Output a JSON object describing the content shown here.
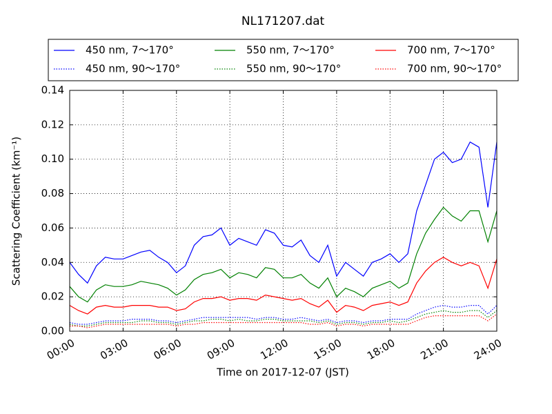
{
  "chart_data": {
    "type": "line",
    "title": "NL171207.dat",
    "xlabel": "Time on 2017-12-07 (JST)",
    "ylabel": "Scattering Coefficient (km⁻¹)",
    "grid": true,
    "legend": "top",
    "x": [
      0,
      0.5,
      1,
      1.5,
      2,
      2.5,
      3,
      3.5,
      4,
      4.5,
      5,
      5.5,
      6,
      6.5,
      7,
      7.5,
      8,
      8.5,
      9,
      9.5,
      10,
      10.5,
      11,
      11.5,
      12,
      12.5,
      13,
      13.5,
      14,
      14.5,
      15,
      15.5,
      16,
      16.5,
      17,
      17.5,
      18,
      18.5,
      19,
      19.5,
      20,
      20.5,
      21,
      21.5,
      22,
      22.5,
      23,
      23.5,
      24
    ],
    "xlim": [
      0,
      24
    ],
    "xticks": [
      {
        "value": 0,
        "label": "00:00"
      },
      {
        "value": 3,
        "label": "03:00"
      },
      {
        "value": 6,
        "label": "06:00"
      },
      {
        "value": 9,
        "label": "09:00"
      },
      {
        "value": 12,
        "label": "12:00"
      },
      {
        "value": 15,
        "label": "15:00"
      },
      {
        "value": 18,
        "label": "18:00"
      },
      {
        "value": 21,
        "label": "21:00"
      },
      {
        "value": 24,
        "label": "24:00"
      }
    ],
    "ylim": [
      0,
      0.14
    ],
    "yticks": [
      {
        "value": 0,
        "label": "0.00"
      },
      {
        "value": 0.02,
        "label": "0.02"
      },
      {
        "value": 0.04,
        "label": "0.04"
      },
      {
        "value": 0.06,
        "label": "0.06"
      },
      {
        "value": 0.08,
        "label": "0.08"
      },
      {
        "value": 0.1,
        "label": "0.10"
      },
      {
        "value": 0.12,
        "label": "0.12"
      },
      {
        "value": 0.14,
        "label": "0.14"
      }
    ],
    "series": [
      {
        "name": "450 nm, 7～170°",
        "color": "#0000ff",
        "linestyle": "solid",
        "values": [
          0.04,
          0.033,
          0.028,
          0.038,
          0.043,
          0.042,
          0.042,
          0.044,
          0.046,
          0.047,
          0.043,
          0.04,
          0.034,
          0.038,
          0.05,
          0.055,
          0.056,
          0.06,
          0.05,
          0.054,
          0.052,
          0.05,
          0.059,
          0.057,
          0.05,
          0.049,
          0.053,
          0.044,
          0.04,
          0.05,
          0.032,
          0.04,
          0.036,
          0.032,
          0.04,
          0.042,
          0.045,
          0.04,
          0.045,
          0.07,
          0.085,
          0.1,
          0.104,
          0.098,
          0.1,
          0.11,
          0.107,
          0.072,
          0.11
        ]
      },
      {
        "name": "450 nm, 90～170°",
        "color": "#0000ff",
        "linestyle": "dotted",
        "values": [
          0.005,
          0.004,
          0.004,
          0.005,
          0.006,
          0.006,
          0.006,
          0.007,
          0.007,
          0.007,
          0.006,
          0.006,
          0.005,
          0.006,
          0.007,
          0.008,
          0.008,
          0.008,
          0.008,
          0.008,
          0.008,
          0.007,
          0.008,
          0.008,
          0.007,
          0.007,
          0.008,
          0.007,
          0.006,
          0.007,
          0.005,
          0.006,
          0.006,
          0.005,
          0.006,
          0.006,
          0.007,
          0.007,
          0.007,
          0.01,
          0.012,
          0.014,
          0.015,
          0.014,
          0.014,
          0.015,
          0.015,
          0.01,
          0.015
        ]
      },
      {
        "name": "550 nm, 7～170°",
        "color": "#008000",
        "linestyle": "solid",
        "values": [
          0.026,
          0.02,
          0.017,
          0.024,
          0.027,
          0.026,
          0.026,
          0.027,
          0.029,
          0.028,
          0.027,
          0.025,
          0.021,
          0.024,
          0.03,
          0.033,
          0.034,
          0.036,
          0.031,
          0.034,
          0.033,
          0.031,
          0.037,
          0.036,
          0.031,
          0.031,
          0.033,
          0.028,
          0.025,
          0.031,
          0.02,
          0.025,
          0.023,
          0.02,
          0.025,
          0.027,
          0.029,
          0.025,
          0.028,
          0.045,
          0.057,
          0.065,
          0.072,
          0.067,
          0.064,
          0.07,
          0.07,
          0.052,
          0.07
        ]
      },
      {
        "name": "550 nm, 90～170°",
        "color": "#008000",
        "linestyle": "dotted",
        "values": [
          0.004,
          0.003,
          0.003,
          0.004,
          0.005,
          0.005,
          0.005,
          0.005,
          0.006,
          0.006,
          0.005,
          0.005,
          0.004,
          0.005,
          0.006,
          0.006,
          0.007,
          0.007,
          0.006,
          0.007,
          0.006,
          0.006,
          0.007,
          0.007,
          0.006,
          0.006,
          0.006,
          0.006,
          0.005,
          0.006,
          0.004,
          0.005,
          0.005,
          0.004,
          0.005,
          0.005,
          0.006,
          0.005,
          0.006,
          0.008,
          0.01,
          0.011,
          0.012,
          0.011,
          0.011,
          0.012,
          0.012,
          0.008,
          0.012
        ]
      },
      {
        "name": "700 nm, 7～170°",
        "color": "#ff0000",
        "linestyle": "solid",
        "values": [
          0.015,
          0.012,
          0.01,
          0.014,
          0.015,
          0.014,
          0.014,
          0.015,
          0.015,
          0.015,
          0.014,
          0.014,
          0.012,
          0.013,
          0.017,
          0.019,
          0.019,
          0.02,
          0.018,
          0.019,
          0.019,
          0.018,
          0.021,
          0.02,
          0.019,
          0.018,
          0.019,
          0.016,
          0.014,
          0.018,
          0.011,
          0.015,
          0.014,
          0.012,
          0.015,
          0.016,
          0.017,
          0.015,
          0.017,
          0.028,
          0.035,
          0.04,
          0.043,
          0.04,
          0.038,
          0.04,
          0.038,
          0.025,
          0.042
        ]
      },
      {
        "name": "700 nm, 90～170°",
        "color": "#ff0000",
        "linestyle": "dotted",
        "values": [
          0.003,
          0.003,
          0.002,
          0.003,
          0.004,
          0.004,
          0.004,
          0.004,
          0.004,
          0.004,
          0.004,
          0.004,
          0.003,
          0.004,
          0.004,
          0.005,
          0.005,
          0.005,
          0.005,
          0.005,
          0.005,
          0.005,
          0.005,
          0.005,
          0.005,
          0.005,
          0.005,
          0.004,
          0.004,
          0.005,
          0.003,
          0.004,
          0.004,
          0.003,
          0.004,
          0.004,
          0.004,
          0.004,
          0.004,
          0.006,
          0.008,
          0.009,
          0.009,
          0.009,
          0.009,
          0.009,
          0.009,
          0.006,
          0.01
        ]
      }
    ]
  }
}
